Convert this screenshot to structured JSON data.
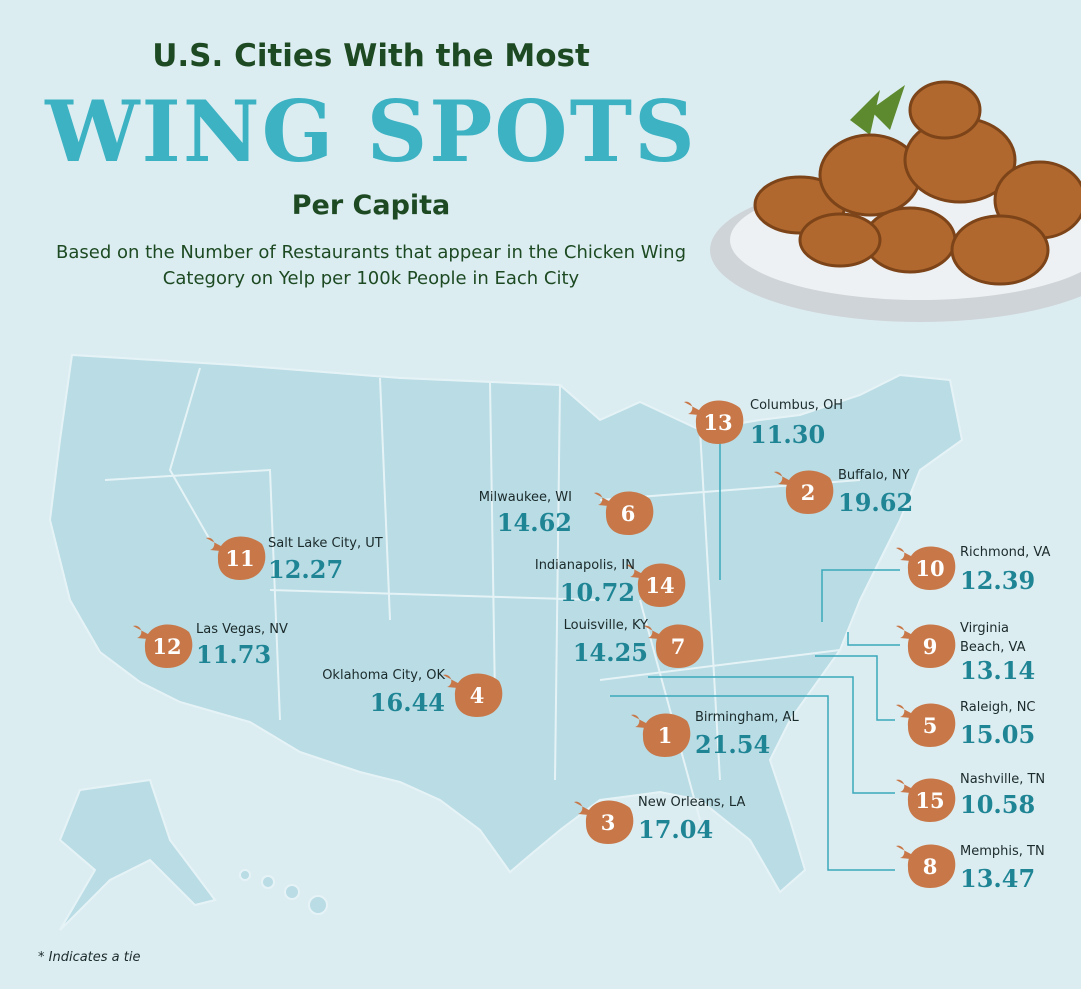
{
  "header": {
    "line1": "U.S. Cities With the Most",
    "highlight": "WING SPOTS",
    "line3": "Per Capita",
    "subtitle": "Based on the Number of Restaurants that appear in the Chicken Wing Category on Yelp per 100k People in Each City"
  },
  "cities": [
    {
      "rank": 13,
      "name": "Columbus, OH",
      "value": "11.30"
    },
    {
      "rank": 2,
      "name": "Buffalo, NY",
      "value": "19.62"
    },
    {
      "rank": 6,
      "name": "Milwaukee, WI",
      "value": "14.62"
    },
    {
      "rank": 11,
      "name": "Salt Lake City, UT",
      "value": "12.27"
    },
    {
      "rank": 14,
      "name": "Indianapolis, IN",
      "value": "10.72"
    },
    {
      "rank": 10,
      "name": "Richmond, VA",
      "value": "12.39"
    },
    {
      "rank": 12,
      "name": "Las Vegas, NV",
      "value": "11.73"
    },
    {
      "rank": 7,
      "name": "Louisville, KY",
      "value": "14.25"
    },
    {
      "rank": 9,
      "name": "Virginia Beach, VA",
      "value": "13.14"
    },
    {
      "rank": 4,
      "name": "Oklahoma City, OK",
      "value": "16.44"
    },
    {
      "rank": 5,
      "name": "Raleigh, NC",
      "value": "15.05"
    },
    {
      "rank": 1,
      "name": "Birmingham, AL",
      "value": "21.54"
    },
    {
      "rank": 15,
      "name": "Nashville, TN",
      "value": "10.58"
    },
    {
      "rank": 3,
      "name": "New Orleans, LA",
      "value": "17.04"
    },
    {
      "rank": 8,
      "name": "Memphis, TN",
      "value": "13.47"
    }
  ],
  "footnote": "* Indicates a tie"
}
